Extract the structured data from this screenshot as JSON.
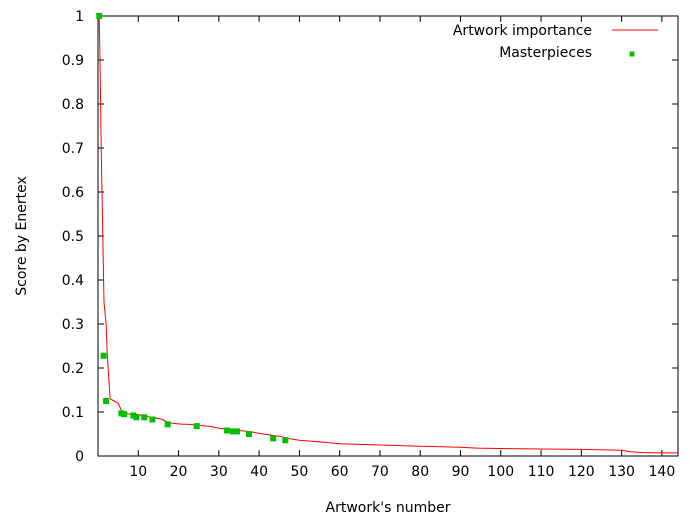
{
  "chart_data": {
    "type": "line",
    "title": "",
    "xlabel": "Artwork's number",
    "ylabel": "Score by Enertex",
    "xlim": [
      0,
      144
    ],
    "ylim": [
      0,
      1
    ],
    "xticks": [
      {
        "value": 10,
        "label": "10"
      },
      {
        "value": 20,
        "label": "20"
      },
      {
        "value": 30,
        "label": "30"
      },
      {
        "value": 40,
        "label": "40"
      },
      {
        "value": 50,
        "label": "50"
      },
      {
        "value": 60,
        "label": "60"
      },
      {
        "value": 70,
        "label": "70"
      },
      {
        "value": 80,
        "label": "80"
      },
      {
        "value": 90,
        "label": "90"
      },
      {
        "value": 100,
        "label": "100"
      },
      {
        "value": 110,
        "label": "110"
      },
      {
        "value": 120,
        "label": "120"
      },
      {
        "value": 130,
        "label": "130"
      },
      {
        "value": 140,
        "label": "140"
      }
    ],
    "yticks": [
      {
        "value": 0,
        "label": "0"
      },
      {
        "value": 0.1,
        "label": "0.1"
      },
      {
        "value": 0.2,
        "label": "0.2"
      },
      {
        "value": 0.3,
        "label": "0.3"
      },
      {
        "value": 0.4,
        "label": "0.4"
      },
      {
        "value": 0.5,
        "label": "0.5"
      },
      {
        "value": 0.6,
        "label": "0.6"
      },
      {
        "value": 0.7,
        "label": "0.7"
      },
      {
        "value": 0.8,
        "label": "0.8"
      },
      {
        "value": 0.9,
        "label": "0.9"
      },
      {
        "value": 1,
        "label": "1"
      }
    ],
    "grid": false,
    "legend_position": "top-right",
    "series": [
      {
        "name": "Artwork importance",
        "style": "line",
        "color": "#ff0000",
        "x": [
          0.3,
          0.5,
          0.8,
          1.2,
          1.5,
          2,
          2.3,
          3,
          4,
          5,
          5.5,
          6,
          7,
          8,
          10,
          12,
          14,
          16,
          17,
          18,
          20,
          21,
          22,
          25,
          28,
          30,
          33,
          35,
          38,
          41,
          45,
          47,
          50,
          55,
          60,
          70,
          80,
          90,
          94,
          100,
          110,
          120,
          130,
          132,
          135,
          140,
          144
        ],
        "y": [
          1.0,
          0.9,
          0.7,
          0.5,
          0.35,
          0.3,
          0.23,
          0.13,
          0.125,
          0.12,
          0.11,
          0.1,
          0.097,
          0.095,
          0.094,
          0.09,
          0.087,
          0.083,
          0.078,
          0.075,
          0.073,
          0.072,
          0.072,
          0.07,
          0.067,
          0.063,
          0.06,
          0.058,
          0.055,
          0.05,
          0.045,
          0.04,
          0.036,
          0.032,
          0.028,
          0.025,
          0.022,
          0.02,
          0.018,
          0.017,
          0.016,
          0.015,
          0.013,
          0.01,
          0.008,
          0.007,
          0.007
        ]
      },
      {
        "name": "Masterpieces",
        "style": "points",
        "color": "#00c000",
        "x": [
          0.3,
          1.4,
          2,
          5.8,
          6.5,
          8.8,
          9.5,
          11.5,
          13.5,
          17.3,
          24.5,
          32,
          33.5,
          34.5,
          37.5,
          43.5,
          46.5
        ],
        "y": [
          1.0,
          0.228,
          0.125,
          0.097,
          0.095,
          0.092,
          0.088,
          0.088,
          0.083,
          0.072,
          0.068,
          0.058,
          0.056,
          0.056,
          0.05,
          0.04,
          0.036
        ]
      }
    ]
  }
}
